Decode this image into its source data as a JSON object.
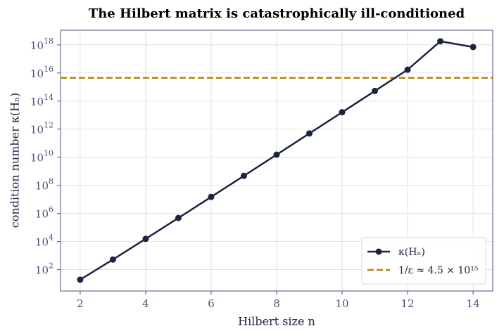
{
  "chart_data": {
    "type": "line",
    "title": "The Hilbert matrix is catastrophically ill-conditioned",
    "x_label": "Hilbert size  n",
    "y_label": "condition number  κ(Hₙ)",
    "x": [
      2,
      3,
      4,
      5,
      6,
      7,
      8,
      9,
      10,
      11,
      12,
      13,
      14
    ],
    "series": [
      {
        "name": "κ(Hₙ)",
        "color": "#1b2440",
        "values": [
          19.28,
          524.1,
          15514,
          476607,
          14951059,
          475367357,
          15257575253,
          493153940000,
          16024416000000,
          522270000000000,
          17000000000000000,
          1800000000000000000,
          700000000000000000
        ]
      }
    ],
    "reference_lines": [
      {
        "name": "1/ε ≈ 4.5 × 10¹⁵",
        "color": "#b8860b",
        "value": 4500000000000000.0
      }
    ],
    "xlim": [
      1.4,
      14.6
    ],
    "ylim": [
      3,
      1.1e+19
    ],
    "xticks": [
      2,
      4,
      6,
      8,
      10,
      12,
      14
    ],
    "yticks": [
      {
        "value": 100,
        "label": "10^2"
      },
      {
        "value": 10000,
        "label": "10^4"
      },
      {
        "value": 1000000,
        "label": "10^6"
      },
      {
        "value": 100000000,
        "label": "10^8"
      },
      {
        "value": 10000000000,
        "label": "10^10"
      },
      {
        "value": 1000000000000,
        "label": "10^12"
      },
      {
        "value": 100000000000000,
        "label": "10^14"
      },
      {
        "value": 10000000000000000,
        "label": "10^16"
      },
      {
        "value": 1000000000000000000,
        "label": "10^18"
      }
    ],
    "y_scale": "log",
    "grid": true,
    "legend": "lower right"
  }
}
